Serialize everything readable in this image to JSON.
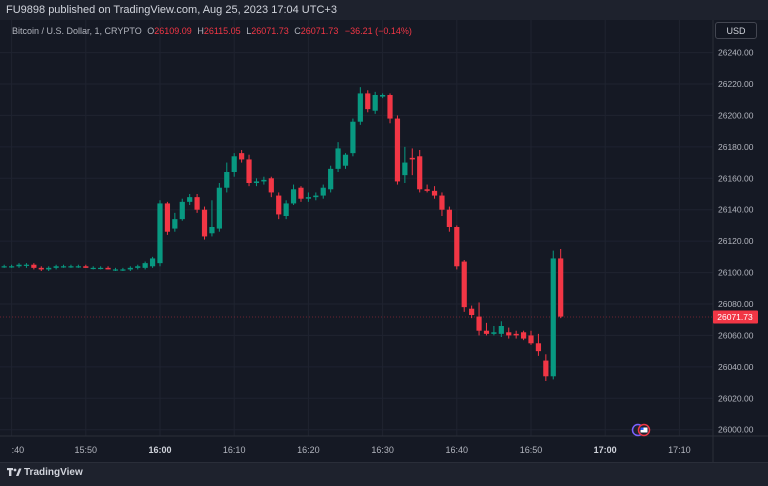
{
  "header": {
    "published": "FU9898 published on TradingView.com, Aug 25, 2023 17:04 UTC+3"
  },
  "legend": {
    "symbol": "Bitcoin / U.S. Dollar, 1, CRYPTO",
    "o_label": "O",
    "o_value": "26109.09",
    "h_label": "H",
    "h_value": "26115.05",
    "l_label": "L",
    "l_value": "26071.73",
    "c_label": "C",
    "c_value": "26071.73",
    "change": "−36.21 (−0.14%)"
  },
  "currency": "USD",
  "price_label": "26071.73",
  "colors": {
    "up": "#089981",
    "down": "#f23645",
    "background": "#131722"
  },
  "footer": {
    "brand": "TradingView"
  },
  "chart_data": {
    "type": "candlestick",
    "y_ticks": [
      "26000.00",
      "26020.00",
      "26040.00",
      "26060.00",
      "26080.00",
      "26100.00",
      "26120.00",
      "26140.00",
      "26160.00",
      "26180.00",
      "26200.00",
      "26220.00",
      "26240.00"
    ],
    "x_ticks": [
      {
        "label": ":40",
        "min": -20
      },
      {
        "label": "15:50",
        "min": -10
      },
      {
        "label": "16:00",
        "min": 0,
        "bold": true
      },
      {
        "label": "16:10",
        "min": 10
      },
      {
        "label": "16:20",
        "min": 20
      },
      {
        "label": "16:30",
        "min": 30
      },
      {
        "label": "16:40",
        "min": 40
      },
      {
        "label": "16:50",
        "min": 50
      },
      {
        "label": "17:00",
        "min": 60,
        "bold": true
      },
      {
        "label": "17:10",
        "min": 70
      }
    ],
    "ylim": [
      25996,
      26248
    ],
    "last_price": 26071.73,
    "candles": [
      {
        "t": -21,
        "o": 26104,
        "h": 26105,
        "l": 26103,
        "c": 26104
      },
      {
        "t": -20,
        "o": 26104,
        "h": 26105,
        "l": 26103,
        "c": 26104
      },
      {
        "t": -19,
        "o": 26104,
        "h": 26106,
        "l": 26103,
        "c": 26105
      },
      {
        "t": -18,
        "o": 26105,
        "h": 26106,
        "l": 26103,
        "c": 26105
      },
      {
        "t": -17,
        "o": 26105,
        "h": 26106,
        "l": 26102,
        "c": 26103
      },
      {
        "t": -16,
        "o": 26103,
        "h": 26104,
        "l": 26101,
        "c": 26102
      },
      {
        "t": -15,
        "o": 26102,
        "h": 26104,
        "l": 26101,
        "c": 26103
      },
      {
        "t": -14,
        "o": 26103,
        "h": 26105,
        "l": 26102,
        "c": 26104
      },
      {
        "t": -13,
        "o": 26104,
        "h": 26105,
        "l": 26103,
        "c": 26104
      },
      {
        "t": -12,
        "o": 26104,
        "h": 26105,
        "l": 26103,
        "c": 26104
      },
      {
        "t": -11,
        "o": 26104,
        "h": 26105,
        "l": 26103,
        "c": 26104
      },
      {
        "t": -10,
        "o": 26104,
        "h": 26105,
        "l": 26103,
        "c": 26103
      },
      {
        "t": -9,
        "o": 26103,
        "h": 26104,
        "l": 26102,
        "c": 26103
      },
      {
        "t": -8,
        "o": 26103,
        "h": 26104,
        "l": 26102,
        "c": 26103
      },
      {
        "t": -7,
        "o": 26103,
        "h": 26104,
        "l": 26102,
        "c": 26102
      },
      {
        "t": -6,
        "o": 26102,
        "h": 26103,
        "l": 26101,
        "c": 26102
      },
      {
        "t": -5,
        "o": 26102,
        "h": 26103,
        "l": 26101,
        "c": 26102
      },
      {
        "t": -4,
        "o": 26102,
        "h": 26104,
        "l": 26101,
        "c": 26103
      },
      {
        "t": -3,
        "o": 26103,
        "h": 26105,
        "l": 26102,
        "c": 26104
      },
      {
        "t": -2,
        "o": 26103,
        "h": 26107,
        "l": 26102,
        "c": 26106
      },
      {
        "t": -1,
        "o": 26104,
        "h": 26110,
        "l": 26103,
        "c": 26109
      },
      {
        "t": 0,
        "o": 26106,
        "h": 26146,
        "l": 26104,
        "c": 26144
      },
      {
        "t": 1,
        "o": 26144,
        "h": 26145,
        "l": 26124,
        "c": 26126
      },
      {
        "t": 2,
        "o": 26128,
        "h": 26138,
        "l": 26126,
        "c": 26134
      },
      {
        "t": 3,
        "o": 26134,
        "h": 26147,
        "l": 26133,
        "c": 26145
      },
      {
        "t": 4,
        "o": 26145,
        "h": 26150,
        "l": 26143,
        "c": 26148
      },
      {
        "t": 5,
        "o": 26148,
        "h": 26150,
        "l": 26138,
        "c": 26140
      },
      {
        "t": 6,
        "o": 26140,
        "h": 26142,
        "l": 26121,
        "c": 26123
      },
      {
        "t": 7,
        "o": 26125,
        "h": 26146,
        "l": 26123,
        "c": 26129
      },
      {
        "t": 8,
        "o": 26128,
        "h": 26157,
        "l": 26126,
        "c": 26154
      },
      {
        "t": 9,
        "o": 26154,
        "h": 26170,
        "l": 26151,
        "c": 26164
      },
      {
        "t": 10,
        "o": 26164,
        "h": 26176,
        "l": 26161,
        "c": 26174
      },
      {
        "t": 11,
        "o": 26176,
        "h": 26178,
        "l": 26170,
        "c": 26172
      },
      {
        "t": 12,
        "o": 26172,
        "h": 26175,
        "l": 26155,
        "c": 26157
      },
      {
        "t": 13,
        "o": 26157,
        "h": 26160,
        "l": 26155,
        "c": 26158
      },
      {
        "t": 14,
        "o": 26158,
        "h": 26161,
        "l": 26156,
        "c": 26159
      },
      {
        "t": 15,
        "o": 26160,
        "h": 26161,
        "l": 26148,
        "c": 26151
      },
      {
        "t": 16,
        "o": 26149,
        "h": 26151,
        "l": 26134,
        "c": 26137
      },
      {
        "t": 17,
        "o": 26136,
        "h": 26146,
        "l": 26134,
        "c": 26144
      },
      {
        "t": 18,
        "o": 26144,
        "h": 26156,
        "l": 26143,
        "c": 26153
      },
      {
        "t": 19,
        "o": 26154,
        "h": 26155,
        "l": 26145,
        "c": 26147
      },
      {
        "t": 20,
        "o": 26147,
        "h": 26151,
        "l": 26145,
        "c": 26148
      },
      {
        "t": 21,
        "o": 26148,
        "h": 26151,
        "l": 26146,
        "c": 26149
      },
      {
        "t": 22,
        "o": 26149,
        "h": 26156,
        "l": 26147,
        "c": 26154
      },
      {
        "t": 23,
        "o": 26153,
        "h": 26168,
        "l": 26151,
        "c": 26166
      },
      {
        "t": 24,
        "o": 26166,
        "h": 26183,
        "l": 26164,
        "c": 26179
      },
      {
        "t": 25,
        "o": 26168,
        "h": 26176,
        "l": 26166,
        "c": 26175
      },
      {
        "t": 26,
        "o": 26176,
        "h": 26198,
        "l": 26174,
        "c": 26196
      },
      {
        "t": 27,
        "o": 26196,
        "h": 26218,
        "l": 26194,
        "c": 26214
      },
      {
        "t": 28,
        "o": 26214,
        "h": 26216,
        "l": 26202,
        "c": 26204
      },
      {
        "t": 29,
        "o": 26203,
        "h": 26215,
        "l": 26201,
        "c": 26213
      },
      {
        "t": 30,
        "o": 26212,
        "h": 26214,
        "l": 26211,
        "c": 26213
      },
      {
        "t": 31,
        "o": 26213,
        "h": 26214,
        "l": 26195,
        "c": 26198
      },
      {
        "t": 32,
        "o": 26198,
        "h": 26200,
        "l": 26156,
        "c": 26158
      },
      {
        "t": 33,
        "o": 26162,
        "h": 26180,
        "l": 26157,
        "c": 26170
      },
      {
        "t": 34,
        "o": 26173,
        "h": 26179,
        "l": 26162,
        "c": 26172
      },
      {
        "t": 35,
        "o": 26174,
        "h": 26178,
        "l": 26151,
        "c": 26153
      },
      {
        "t": 36,
        "o": 26153,
        "h": 26156,
        "l": 26151,
        "c": 26152
      },
      {
        "t": 37,
        "o": 26152,
        "h": 26155,
        "l": 26147,
        "c": 26149
      },
      {
        "t": 38,
        "o": 26149,
        "h": 26151,
        "l": 26136,
        "c": 26140
      },
      {
        "t": 39,
        "o": 26140,
        "h": 26142,
        "l": 26126,
        "c": 26129
      },
      {
        "t": 40,
        "o": 26129,
        "h": 26130,
        "l": 26102,
        "c": 26104
      },
      {
        "t": 41,
        "o": 26107,
        "h": 26108,
        "l": 26075,
        "c": 26078
      },
      {
        "t": 42,
        "o": 26077,
        "h": 26079,
        "l": 26071,
        "c": 26073
      },
      {
        "t": 43,
        "o": 26072,
        "h": 26081,
        "l": 26060,
        "c": 26063
      },
      {
        "t": 44,
        "o": 26063,
        "h": 26068,
        "l": 26060,
        "c": 26061
      },
      {
        "t": 45,
        "o": 26061,
        "h": 26066,
        "l": 26060,
        "c": 26062
      },
      {
        "t": 46,
        "o": 26061,
        "h": 26069,
        "l": 26059,
        "c": 26066
      },
      {
        "t": 47,
        "o": 26062,
        "h": 26065,
        "l": 26058,
        "c": 26060
      },
      {
        "t": 48,
        "o": 26061,
        "h": 26063,
        "l": 26058,
        "c": 26060
      },
      {
        "t": 49,
        "o": 26062,
        "h": 26063,
        "l": 26057,
        "c": 26058
      },
      {
        "t": 50,
        "o": 26060,
        "h": 26063,
        "l": 26054,
        "c": 26055
      },
      {
        "t": 51,
        "o": 26055,
        "h": 26061,
        "l": 26047,
        "c": 26050
      },
      {
        "t": 52,
        "o": 26044,
        "h": 26048,
        "l": 26031,
        "c": 26034
      },
      {
        "t": 53,
        "o": 26034,
        "h": 26114,
        "l": 26032,
        "c": 26109
      },
      {
        "t": 54,
        "o": 26109,
        "h": 26115,
        "l": 26071,
        "c": 26072
      }
    ]
  }
}
